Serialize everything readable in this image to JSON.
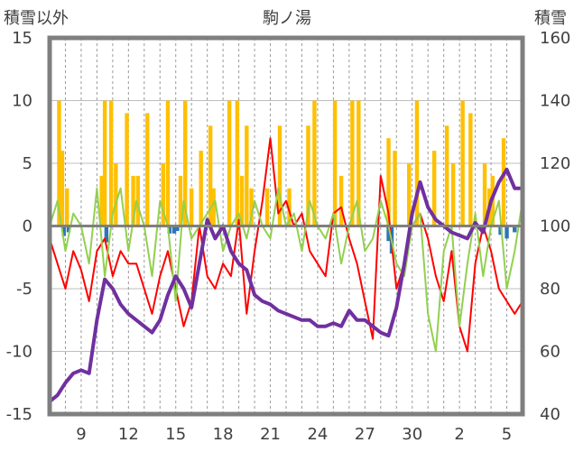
{
  "chart_data": {
    "type": "line",
    "title": "駒ノ湯",
    "left_axis_title": "積雪以外",
    "right_axis_title": "積雪",
    "y_left": {
      "range": [
        -15,
        15
      ],
      "ticks": [
        "15",
        "10",
        "5",
        "0",
        "-5",
        "-10",
        "-15"
      ]
    },
    "y_right": {
      "range": [
        40,
        160
      ],
      "ticks": [
        "160",
        "140",
        "120",
        "100",
        "80",
        "60",
        "40"
      ]
    },
    "x_ticks": [
      "9",
      "12",
      "15",
      "18",
      "21",
      "24",
      "27",
      "30",
      "2",
      "5"
    ],
    "x_tick_days": [
      2,
      5,
      8,
      11,
      14,
      17,
      20,
      23,
      26,
      29
    ],
    "x_range": [
      0,
      30
    ],
    "grid": {
      "horizontal": true,
      "vertical_dashed_daily": true
    },
    "colors": {
      "precipitation": "#ffc000",
      "temp_diff": "#2e75b6",
      "temperature": "#ff0000",
      "wind": "#92d050",
      "snow_depth": "#7030a0",
      "frame": "#7f7f7f"
    },
    "series": [
      {
        "axis": "left",
        "kind": "bars-positive",
        "x": [
          0.6,
          0.8,
          1.1,
          3.3,
          3.5,
          3.9,
          4.2,
          4.9,
          5.3,
          5.6,
          6.2,
          7.2,
          7.5,
          8.3,
          8.6,
          9.0,
          9.6,
          10.2,
          10.4,
          11.4,
          11.9,
          12.2,
          12.5,
          12.8,
          13.8,
          14.6,
          15.2,
          16.4,
          16.8,
          18.1,
          18.5,
          19.2,
          19.6,
          21.5,
          21.9,
          22.8,
          23.3,
          24.4,
          25.2,
          25.6,
          26.2,
          26.7,
          27.6,
          27.9,
          28.1,
          28.8
        ],
        "values": [
          10,
          6,
          3,
          4,
          10,
          10,
          5,
          9,
          4,
          4,
          9,
          5,
          10,
          4,
          10,
          3,
          6,
          8,
          3,
          10,
          10,
          4,
          8,
          3,
          3,
          8,
          3,
          8,
          10,
          10,
          4,
          10,
          10,
          7,
          6,
          5,
          10,
          6,
          8,
          5,
          10,
          9,
          5,
          3,
          4,
          7
        ]
      },
      {
        "axis": "left",
        "kind": "bars-negative",
        "x": [
          0.9,
          1.2,
          3.6,
          7.6,
          7.9,
          8.1,
          21.5,
          21.7,
          28.6,
          29.0,
          29.5
        ],
        "values": [
          -0.8,
          -0.5,
          -1.3,
          -0.6,
          -0.6,
          -0.4,
          -1.2,
          -2.2,
          -0.7,
          -1.0,
          -0.5
        ]
      },
      {
        "axis": "left",
        "kind": "line",
        "x": [
          0,
          0.5,
          1,
          1.5,
          2,
          2.5,
          3,
          3.5,
          4,
          4.5,
          5,
          5.5,
          6,
          6.5,
          7,
          7.5,
          8,
          8.5,
          9,
          9.5,
          10,
          10.5,
          11,
          11.5,
          12,
          12.5,
          13,
          13.5,
          14,
          14.5,
          15,
          15.5,
          16,
          16.5,
          17,
          17.5,
          18,
          18.5,
          19,
          19.5,
          20,
          20.5,
          21,
          21.5,
          22,
          22.5,
          23,
          23.5,
          24,
          24.5,
          25,
          25.5,
          26,
          26.5,
          27,
          27.5,
          28,
          28.5,
          29,
          29.5,
          30
        ],
        "values": [
          -1,
          -3,
          -5,
          -2,
          -3.5,
          -6,
          -2,
          -1,
          -4,
          -2,
          -3,
          -3,
          -5,
          -7,
          -4,
          -2,
          -5,
          -8,
          -6,
          0,
          -4,
          -5,
          -3,
          -4,
          0.5,
          -7,
          -2,
          2,
          7,
          1,
          2,
          0,
          1,
          -2,
          -3,
          -4,
          1,
          1.5,
          -1,
          -3,
          -6,
          -9,
          4,
          1,
          -5,
          -3,
          0,
          1,
          -1,
          -4,
          -6,
          -2,
          -8,
          -10,
          -3,
          0,
          -2,
          -5,
          -6,
          -7,
          -6
        ]
      },
      {
        "axis": "left",
        "kind": "line",
        "x": [
          0,
          0.5,
          1,
          1.5,
          2,
          2.5,
          3,
          3.5,
          4,
          4.5,
          5,
          5.5,
          6,
          6.5,
          7,
          7.5,
          8,
          8.5,
          9,
          9.5,
          10,
          10.5,
          11,
          11.5,
          12,
          12.5,
          13,
          13.5,
          14,
          14.5,
          15,
          15.5,
          16,
          16.5,
          17,
          17.5,
          18,
          18.5,
          19,
          19.5,
          20,
          20.5,
          21,
          21.5,
          22,
          22.5,
          23,
          23.5,
          24,
          24.5,
          25,
          25.5,
          26,
          26.5,
          27,
          27.5,
          28,
          28.5,
          29,
          29.5,
          30
        ],
        "values": [
          0,
          2,
          -2,
          1,
          0,
          -3,
          3,
          -4,
          1,
          3,
          -2,
          2,
          0,
          -4,
          2,
          0,
          -6,
          2,
          -1,
          0,
          1,
          2,
          -2,
          0,
          1,
          -1,
          2,
          0,
          -1,
          3,
          0,
          1,
          -2,
          2,
          0,
          -1,
          1,
          -3,
          0,
          2,
          -2,
          -1,
          2,
          0,
          -3,
          -4,
          0,
          1,
          -7,
          -10,
          -2,
          0,
          -8,
          -3,
          1,
          -4,
          0,
          2,
          -5,
          -2,
          2
        ]
      },
      {
        "axis": "right",
        "kind": "line",
        "x": [
          0,
          0.5,
          1,
          1.5,
          2,
          2.5,
          3,
          3.5,
          4,
          4.5,
          5,
          5.5,
          6,
          6.5,
          7,
          7.5,
          8,
          8.5,
          9,
          9.5,
          10,
          10.5,
          11,
          11.5,
          12,
          12.5,
          13,
          13.5,
          14,
          14.5,
          15,
          15.5,
          16,
          16.5,
          17,
          17.5,
          18,
          18.5,
          19,
          19.5,
          20,
          20.5,
          21,
          21.5,
          22,
          22.5,
          23,
          23.5,
          24,
          24.5,
          25,
          25.5,
          26,
          26.5,
          27,
          27.5,
          28,
          28.5,
          29,
          29.5,
          30
        ],
        "values": [
          44,
          46,
          50,
          53,
          54,
          53,
          70,
          83,
          80,
          75,
          72,
          70,
          68,
          66,
          70,
          78,
          84,
          80,
          74,
          88,
          102,
          96,
          100,
          92,
          88,
          86,
          78,
          76,
          75,
          73,
          72,
          71,
          70,
          70,
          68,
          68,
          69,
          68,
          73,
          70,
          70,
          68,
          66,
          65,
          74,
          88,
          104,
          114,
          106,
          102,
          100,
          98,
          97,
          96,
          101,
          98,
          108,
          114,
          118,
          112,
          112
        ]
      }
    ]
  }
}
